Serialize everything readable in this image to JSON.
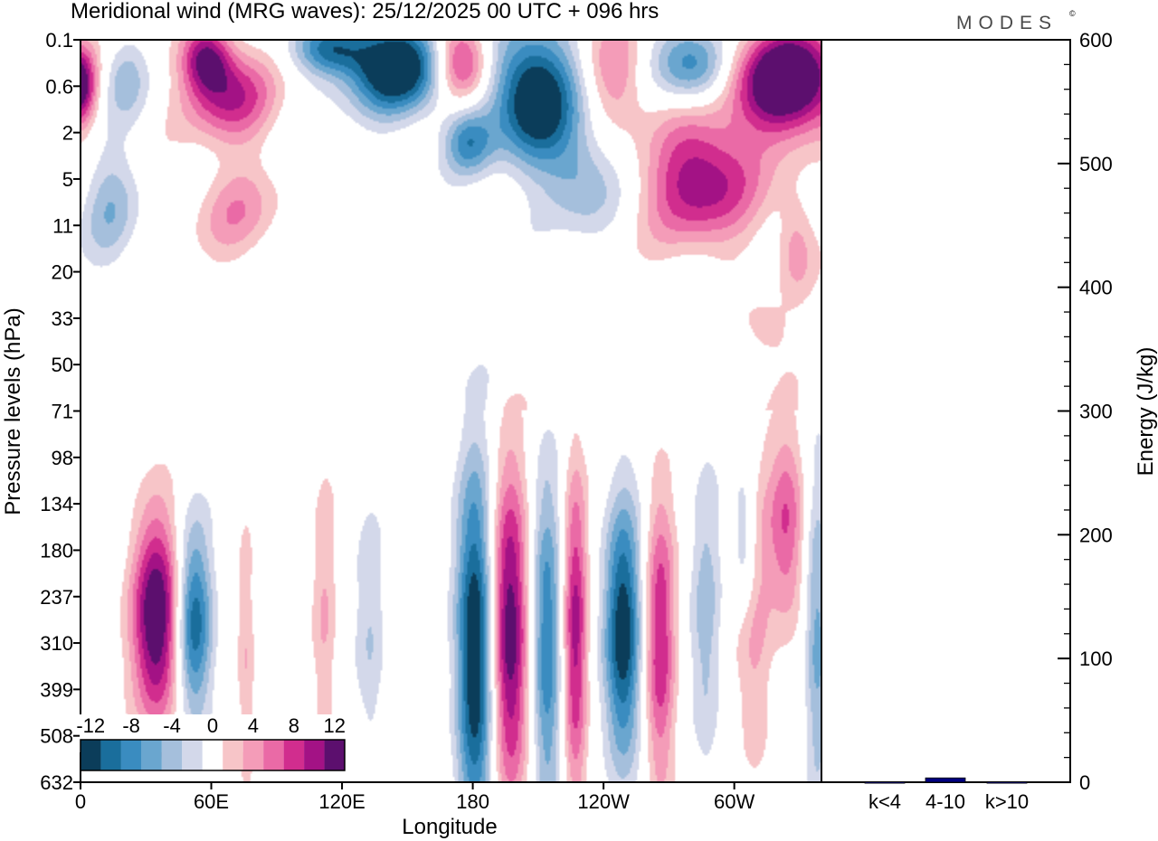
{
  "brand": "MODES",
  "brand_mark": "©",
  "chart_data": {
    "type": "heatmap",
    "title": "Meridional wind (MRG waves):  25/12/2025  00 UTC  + 096 hrs",
    "xlabel": "Longitude",
    "ylabel": "Pressure levels (hPa)",
    "x_ticks": [
      "0",
      "60E",
      "120E",
      "180",
      "120W",
      "60W"
    ],
    "x_tick_degrees": [
      0,
      60,
      120,
      180,
      240,
      300
    ],
    "x_range_degrees": [
      0,
      340
    ],
    "y_ticks": [
      "0.1",
      "0.6",
      "2",
      "5",
      "11",
      "20",
      "33",
      "50",
      "71",
      "98",
      "134",
      "180",
      "237",
      "310",
      "399",
      "508",
      "632"
    ],
    "colorbar": {
      "tick_labels": [
        "-12",
        "-8",
        "-4",
        "0",
        "4",
        "8",
        "12"
      ],
      "levels": [
        -14,
        -12,
        -10,
        -8,
        -6,
        -4,
        -2,
        2,
        4,
        6,
        8,
        10,
        12,
        14
      ],
      "colors": [
        "#0b3d5a",
        "#1a6e9c",
        "#3a8cc0",
        "#6aa6cf",
        "#a5bfdc",
        "#d3d8ea",
        "#ffffff",
        "#f7c5c8",
        "#f49cb8",
        "#ea6aa6",
        "#d12d8e",
        "#a31285",
        "#5c0f6e"
      ]
    },
    "contour_fields": [
      {
        "lon": 52,
        "level": 12.6,
        "v": -12,
        "wx": 6,
        "wy": 1.5
      },
      {
        "lon": 35,
        "level": 12.5,
        "v": 15,
        "wx": 8,
        "wy": 1.6
      },
      {
        "lon": 133,
        "level": 12.8,
        "v": -4,
        "wx": 5,
        "wy": 2.0
      },
      {
        "lon": 112,
        "level": 12.5,
        "v": 4,
        "wx": 4,
        "wy": 2.5
      },
      {
        "lon": 76,
        "level": 13.5,
        "v": 4,
        "wx": 3,
        "wy": 2.2
      },
      {
        "lon": 181,
        "level": 13.2,
        "v": -15,
        "wx": 6,
        "wy": 2.8
      },
      {
        "lon": 197,
        "level": 12.8,
        "v": 14,
        "wx": 6,
        "wy": 2.5
      },
      {
        "lon": 214,
        "level": 13.1,
        "v": -10,
        "wx": 5,
        "wy": 2.6
      },
      {
        "lon": 227,
        "level": 12.9,
        "v": 11,
        "wx": 4,
        "wy": 2.6
      },
      {
        "lon": 249,
        "level": 12.8,
        "v": -14,
        "wx": 6,
        "wy": 2.0
      },
      {
        "lon": 266,
        "level": 13.0,
        "v": 10,
        "wx": 5,
        "wy": 2.3
      },
      {
        "lon": 287,
        "level": 12.5,
        "v": -5,
        "wx": 5,
        "wy": 2.5
      },
      {
        "lon": 305,
        "level": 10.8,
        "v": -6,
        "wx": 4,
        "wy": 1.2
      },
      {
        "lon": 309,
        "level": 12.4,
        "v": 5,
        "wx": 6,
        "wy": 2.5
      },
      {
        "lon": 324,
        "level": 10.5,
        "v": 8,
        "wx": 6,
        "wy": 1.5
      },
      {
        "lon": 338,
        "level": 12.8,
        "v": -7,
        "wx": 4,
        "wy": 2.5
      },
      {
        "lon": 0,
        "level": 1.0,
        "v": 12,
        "wx": 5,
        "wy": 0.6
      },
      {
        "lon": 20,
        "level": 0.8,
        "v": -5,
        "wx": 7,
        "wy": 0.6
      },
      {
        "lon": 58,
        "level": 0.4,
        "v": 11,
        "wx": 8,
        "wy": 0.5
      },
      {
        "lon": 68,
        "level": 1.2,
        "v": 10,
        "wx": 14,
        "wy": 0.7
      },
      {
        "lon": 115,
        "level": 0.2,
        "v": -10,
        "wx": 12,
        "wy": 0.4
      },
      {
        "lon": 145,
        "level": 0.6,
        "v": -16,
        "wx": 16,
        "wy": 0.7
      },
      {
        "lon": 175,
        "level": 0.5,
        "v": 12,
        "wx": 9,
        "wy": 0.6
      },
      {
        "lon": 208,
        "level": 1.2,
        "v": -16,
        "wx": 14,
        "wy": 1.0
      },
      {
        "lon": 245,
        "level": 0.7,
        "v": 6,
        "wx": 10,
        "wy": 0.8
      },
      {
        "lon": 282,
        "level": 0.6,
        "v": -10,
        "wx": 12,
        "wy": 0.6
      },
      {
        "lon": 325,
        "level": 0.9,
        "v": 18,
        "wx": 18,
        "wy": 0.8
      },
      {
        "lon": 178,
        "level": 2.2,
        "v": -8,
        "wx": 8,
        "wy": 0.5
      },
      {
        "lon": 285,
        "level": 3.0,
        "v": 12,
        "wx": 18,
        "wy": 1.0
      },
      {
        "lon": 230,
        "level": 3.0,
        "v": -6,
        "wx": 12,
        "wy": 0.8
      },
      {
        "lon": 72,
        "level": 3.7,
        "v": 5,
        "wx": 14,
        "wy": 0.8
      },
      {
        "lon": 14,
        "level": 3.6,
        "v": -5,
        "wx": 9,
        "wy": 1.0
      },
      {
        "lon": 328,
        "level": 4.4,
        "v": 5,
        "wx": 6,
        "wy": 0.8
      },
      {
        "lon": 315,
        "level": 6.3,
        "v": 3.5,
        "wx": 8,
        "wy": 0.5
      }
    ]
  },
  "energy_chart": {
    "ylabel": "Energy (J/kg)",
    "y_ticks": [
      0,
      100,
      200,
      300,
      400,
      500,
      600
    ],
    "ylim": [
      0,
      600
    ],
    "categories": [
      "k<4",
      "4-10",
      "k>10"
    ],
    "values": [
      0.3,
      3.5,
      0.3
    ],
    "bar_color": "#000080"
  }
}
